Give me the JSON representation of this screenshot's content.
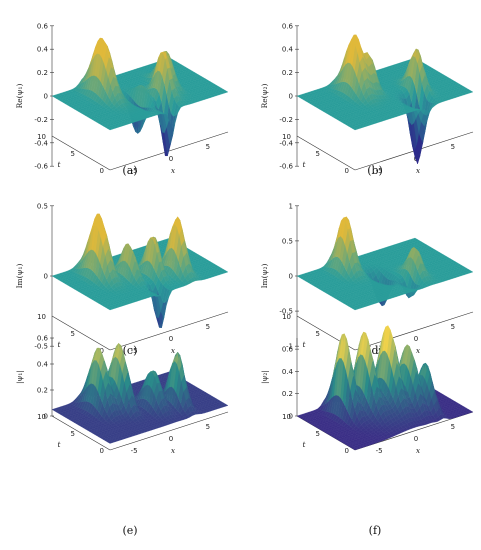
{
  "panels": [
    {
      "id": "a",
      "caption": "(a)",
      "zlabel": "Re(ψ₁)",
      "zticks": [
        "0.6",
        "0.4",
        "0.2",
        "0",
        "-0.2",
        "-0.4",
        "-0.6"
      ],
      "zmin": -0.6,
      "zmax": 0.6,
      "tticks": [
        "0",
        "5",
        "10"
      ],
      "xticks": [
        "-5",
        "0",
        "5"
      ],
      "tlabel": "t",
      "xlabel": "x",
      "surface": "teal"
    },
    {
      "id": "b",
      "caption": "(b)",
      "zlabel": "Re(ψ₂)",
      "zticks": [
        "0.6",
        "0.4",
        "0.2",
        "0",
        "-0.2",
        "-0.4",
        "-0.6"
      ],
      "zmin": -0.6,
      "zmax": 0.6,
      "tticks": [
        "0",
        "5",
        "10"
      ],
      "xticks": [
        "-5",
        "0",
        "5"
      ],
      "tlabel": "t",
      "xlabel": "x",
      "surface": "teal"
    },
    {
      "id": "c",
      "caption": "(c)",
      "zlabel": "Im(ψ₁)",
      "zticks": [
        "0.5",
        "0",
        "-0.5"
      ],
      "zmin": -0.5,
      "zmax": 0.5,
      "tticks": [
        "0",
        "5",
        "10"
      ],
      "xticks": [
        "-5",
        "0",
        "5"
      ],
      "tlabel": "t",
      "xlabel": "x",
      "surface": "teal"
    },
    {
      "id": "d",
      "caption": "(d)",
      "zlabel": "Im(ψ₂)",
      "zticks": [
        "1",
        "0.5",
        "0",
        "-0.5",
        "-1"
      ],
      "zmin": -1,
      "zmax": 1,
      "tticks": [
        "0",
        "5",
        "10"
      ],
      "xticks": [
        "-5",
        "0",
        "5"
      ],
      "tlabel": "t",
      "xlabel": "x",
      "surface": "teal"
    },
    {
      "id": "e",
      "caption": "(e)",
      "zlabel": "|ψ₁|",
      "zticks": [
        "0.6",
        "0.4",
        "0.2",
        "0"
      ],
      "zmin": 0,
      "zmax": 0.6,
      "tticks": [
        "0",
        "5",
        "10"
      ],
      "xticks": [
        "-5",
        "0",
        "5"
      ],
      "tlabel": "t",
      "xlabel": "x",
      "surface": "modulus"
    },
    {
      "id": "f",
      "caption": "(f)",
      "zlabel": "|ψ₂|",
      "zticks": [
        "0.6",
        "0.4",
        "0.2",
        "0"
      ],
      "zmin": 0,
      "zmax": 0.7,
      "tticks": [
        "0",
        "5",
        "10"
      ],
      "xticks": [
        "-5",
        "0",
        "5"
      ],
      "tlabel": "t",
      "xlabel": "x",
      "surface": "modulus"
    }
  ],
  "colors": {
    "plane": "#2a9d9a",
    "peak": "#e0b93a",
    "trough": "#2d2a8a",
    "base": "#3b2f86",
    "mid": "#2a8c8a",
    "top": "#f1d24a"
  }
}
